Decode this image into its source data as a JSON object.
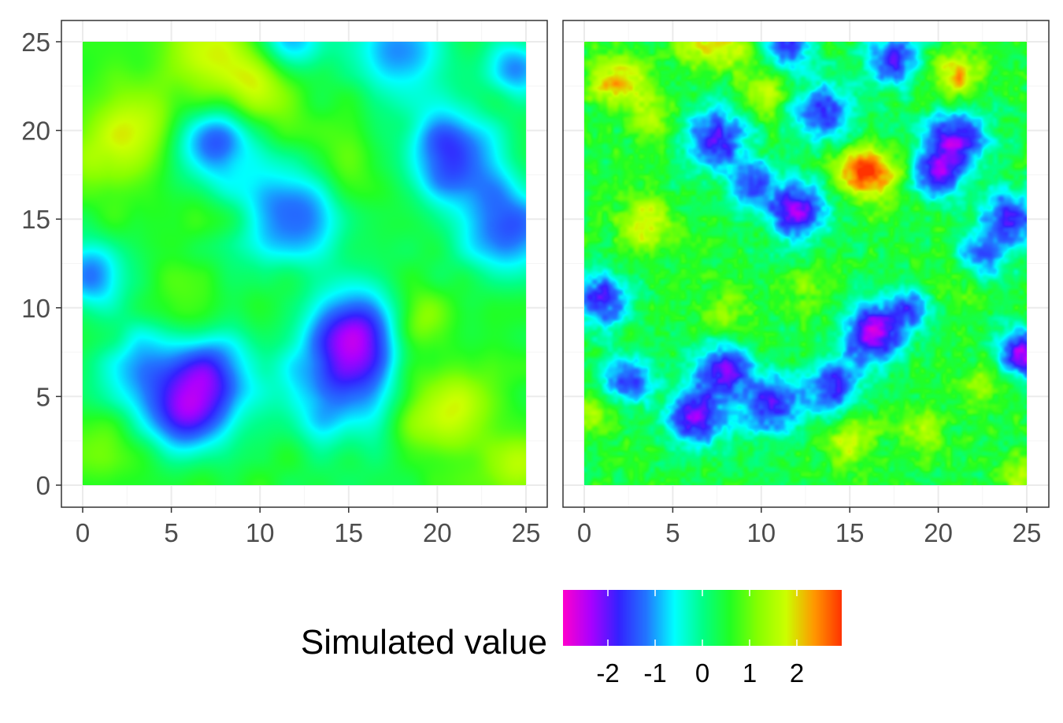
{
  "chart_data": [
    {
      "type": "heatmap",
      "title": "",
      "xlabel": "",
      "ylabel": "",
      "xlim": [
        0,
        25
      ],
      "ylim": [
        0,
        25
      ],
      "x_ticks": [
        "0",
        "5",
        "10",
        "15",
        "20",
        "25"
      ],
      "y_ticks": [
        "0",
        "5",
        "10",
        "15",
        "20",
        "25"
      ],
      "grid": true,
      "smoothness": "smooth, large-scale field",
      "blobs": [
        {
          "x": 7.3,
          "y": 19.3,
          "value": -1.6,
          "r": 1.6
        },
        {
          "x": 20.8,
          "y": 18.6,
          "value": -1.8,
          "r": 1.8
        },
        {
          "x": 24.0,
          "y": 14.5,
          "value": -1.4,
          "r": 2.0
        },
        {
          "x": 11.8,
          "y": 15.2,
          "value": -1.4,
          "r": 2.0
        },
        {
          "x": 15.5,
          "y": 8.8,
          "value": -1.8,
          "r": 1.8
        },
        {
          "x": 14.5,
          "y": 5.5,
          "value": -1.4,
          "r": 2.2
        },
        {
          "x": 6.0,
          "y": 4.0,
          "value": -1.8,
          "r": 1.6
        },
        {
          "x": 7.5,
          "y": 6.5,
          "value": -1.3,
          "r": 1.6
        },
        {
          "x": 0.5,
          "y": 11.8,
          "value": -1.3,
          "r": 1.4
        },
        {
          "x": 11.5,
          "y": 25.0,
          "value": -1.2,
          "r": 1.5
        },
        {
          "x": 18.0,
          "y": 24.5,
          "value": -1.0,
          "r": 1.8
        },
        {
          "x": 24.5,
          "y": 23.5,
          "value": -1.0,
          "r": 1.2
        },
        {
          "x": 3.5,
          "y": 6.5,
          "value": -0.8,
          "r": 2.0
        },
        {
          "x": 9.5,
          "y": 22.8,
          "value": 2.0,
          "r": 1.8
        },
        {
          "x": 3.5,
          "y": 20.5,
          "value": 1.7,
          "r": 1.8
        },
        {
          "x": 20.5,
          "y": 4.2,
          "value": 2.0,
          "r": 1.8
        },
        {
          "x": 19.0,
          "y": 9.5,
          "value": 1.5,
          "r": 1.2
        },
        {
          "x": 1.5,
          "y": 18.5,
          "value": 1.3,
          "r": 1.6
        },
        {
          "x": 6.5,
          "y": 25.0,
          "value": 1.6,
          "r": 1.4
        },
        {
          "x": 24.5,
          "y": 1.0,
          "value": 1.4,
          "r": 1.3
        },
        {
          "x": 0.5,
          "y": 2.0,
          "value": 1.0,
          "r": 1.5
        },
        {
          "x": 14.5,
          "y": 18.0,
          "value": 1.0,
          "r": 1.5
        },
        {
          "x": 6.0,
          "y": 9.5,
          "value": 1.0,
          "r": 1.4
        },
        {
          "x": 5.0,
          "y": 15.5,
          "value": 0.8,
          "r": 1.6
        },
        {
          "x": 19.5,
          "y": 14.5,
          "value": 0.6,
          "r": 1.6
        }
      ],
      "base_value": 0.5
    },
    {
      "type": "heatmap",
      "title": "",
      "xlabel": "",
      "ylabel": "",
      "xlim": [
        0,
        25
      ],
      "ylim": [
        0,
        25
      ],
      "x_ticks": [
        "0",
        "5",
        "10",
        "15",
        "20",
        "25"
      ],
      "y_ticks": [
        "0",
        "5",
        "10",
        "15",
        "20",
        "25"
      ],
      "grid": true,
      "smoothness": "rough, small-scale field",
      "blobs": [
        {
          "x": 7.5,
          "y": 19.5,
          "value": -1.9,
          "r": 1.3
        },
        {
          "x": 12.0,
          "y": 15.5,
          "value": -2.2,
          "r": 1.2
        },
        {
          "x": 13.5,
          "y": 21.0,
          "value": -1.7,
          "r": 1.2
        },
        {
          "x": 21.0,
          "y": 19.5,
          "value": -2.0,
          "r": 1.3
        },
        {
          "x": 20.0,
          "y": 17.5,
          "value": -1.6,
          "r": 1.0
        },
        {
          "x": 24.0,
          "y": 15.0,
          "value": -1.9,
          "r": 1.1
        },
        {
          "x": 16.3,
          "y": 8.5,
          "value": -2.4,
          "r": 1.2
        },
        {
          "x": 7.8,
          "y": 6.5,
          "value": -2.0,
          "r": 1.1
        },
        {
          "x": 6.3,
          "y": 3.8,
          "value": -2.3,
          "r": 1.1
        },
        {
          "x": 10.5,
          "y": 4.5,
          "value": -1.9,
          "r": 1.2
        },
        {
          "x": 14.0,
          "y": 5.5,
          "value": -1.7,
          "r": 1.1
        },
        {
          "x": 24.8,
          "y": 7.5,
          "value": -2.3,
          "r": 1.0
        },
        {
          "x": 1.0,
          "y": 10.5,
          "value": -1.8,
          "r": 1.1
        },
        {
          "x": 2.5,
          "y": 6.0,
          "value": -1.6,
          "r": 1.0
        },
        {
          "x": 11.5,
          "y": 25.0,
          "value": -1.8,
          "r": 1.0
        },
        {
          "x": 17.5,
          "y": 24.0,
          "value": -1.7,
          "r": 1.1
        },
        {
          "x": 9.5,
          "y": 17.0,
          "value": -1.4,
          "r": 0.9
        },
        {
          "x": 18.5,
          "y": 10.0,
          "value": -1.3,
          "r": 1.0
        },
        {
          "x": 22.5,
          "y": 13.0,
          "value": -1.2,
          "r": 1.0
        },
        {
          "x": 2.0,
          "y": 22.8,
          "value": 2.3,
          "r": 1.1
        },
        {
          "x": 21.0,
          "y": 23.0,
          "value": 2.2,
          "r": 1.0
        },
        {
          "x": 16.5,
          "y": 17.5,
          "value": 2.4,
          "r": 1.0
        },
        {
          "x": 15.0,
          "y": 17.8,
          "value": 1.8,
          "r": 0.9
        },
        {
          "x": 3.5,
          "y": 14.8,
          "value": 2.0,
          "r": 1.0
        },
        {
          "x": 10.0,
          "y": 22.0,
          "value": 1.7,
          "r": 0.9
        },
        {
          "x": 6.5,
          "y": 25.0,
          "value": 2.0,
          "r": 0.9
        },
        {
          "x": 8.5,
          "y": 24.5,
          "value": 1.6,
          "r": 0.8
        },
        {
          "x": 15.0,
          "y": 2.5,
          "value": 1.9,
          "r": 0.9
        },
        {
          "x": 19.0,
          "y": 3.0,
          "value": 1.5,
          "r": 0.9
        },
        {
          "x": 0.3,
          "y": 4.0,
          "value": 1.6,
          "r": 0.9
        },
        {
          "x": 4.0,
          "y": 20.5,
          "value": 1.4,
          "r": 0.9
        },
        {
          "x": 22.5,
          "y": 5.5,
          "value": 1.3,
          "r": 0.9
        },
        {
          "x": 24.5,
          "y": 0.5,
          "value": 1.5,
          "r": 0.8
        },
        {
          "x": 12.5,
          "y": 11.0,
          "value": 1.2,
          "r": 0.9
        },
        {
          "x": 8.0,
          "y": 10.0,
          "value": 1.2,
          "r": 1.0
        },
        {
          "x": 20.5,
          "y": 11.0,
          "value": 1.1,
          "r": 1.0
        }
      ],
      "noise_amplitude": 0.55,
      "base_value": 0.45
    }
  ],
  "legend": {
    "title": "Simulated value",
    "ticks": [
      "-2",
      "-1",
      "0",
      "1",
      "2"
    ],
    "range": [
      -2.95,
      2.95
    ],
    "colors": [
      "#ff00cc",
      "#aa00ff",
      "#3322ff",
      "#2277ff",
      "#00ffff",
      "#00ff88",
      "#22ff22",
      "#88ff00",
      "#ccff00",
      "#ff9900",
      "#ff3300"
    ]
  },
  "colors": {
    "panel_border": "#333333",
    "grid_major": "#ebebeb",
    "grid_minor": "#f5f5f5"
  }
}
